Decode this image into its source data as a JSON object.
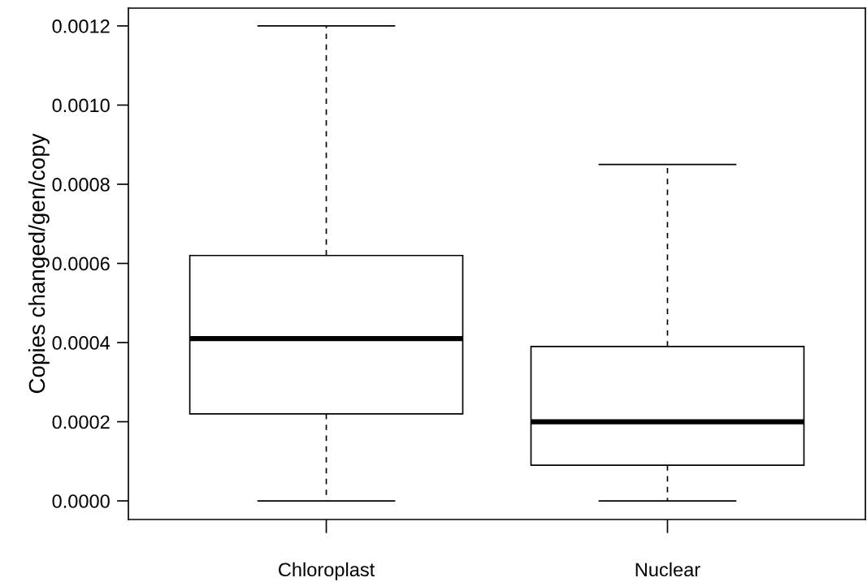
{
  "chart_data": {
    "type": "box",
    "ylabel": "Copies changed/gen/copy",
    "categories": [
      "Chloroplast",
      "Nuclear"
    ],
    "boxes": [
      {
        "low": 0.0,
        "q1": 0.00022,
        "median": 0.00041,
        "q3": 0.00062,
        "high": 0.0012
      },
      {
        "low": 0.0,
        "q1": 9e-05,
        "median": 0.0002,
        "q3": 0.00039,
        "high": 0.00085
      }
    ],
    "ylim": [
      -4.7e-05,
      0.001245
    ],
    "yticks": [
      {
        "value": 0.0,
        "label": "0.0000"
      },
      {
        "value": 0.0002,
        "label": "0.0002"
      },
      {
        "value": 0.0004,
        "label": "0.0004"
      },
      {
        "value": 0.0006,
        "label": "0.0006"
      },
      {
        "value": 0.0008,
        "label": "0.0008"
      },
      {
        "value": 0.001,
        "label": "0.0010"
      },
      {
        "value": 0.0012,
        "label": "0.0012"
      }
    ],
    "grid": false
  }
}
